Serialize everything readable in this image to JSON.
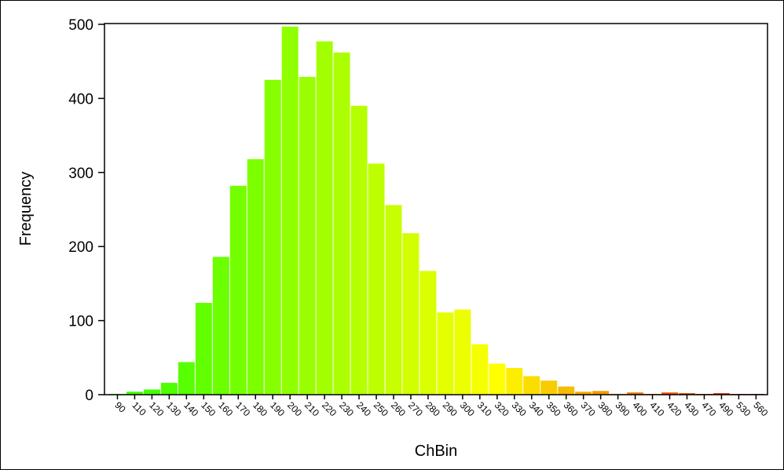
{
  "chart_data": {
    "type": "bar",
    "title": "",
    "xlabel": "ChBin",
    "ylabel": "Frequency",
    "ylim": [
      0,
      500
    ],
    "yticks": [
      0,
      100,
      200,
      300,
      400,
      500
    ],
    "grid": false,
    "categories": [
      "90",
      "110",
      "120",
      "130",
      "140",
      "150",
      "160",
      "170",
      "180",
      "190",
      "200",
      "210",
      "220",
      "230",
      "240",
      "250",
      "260",
      "270",
      "280",
      "290",
      "300",
      "310",
      "320",
      "330",
      "340",
      "350",
      "360",
      "370",
      "380",
      "390",
      "400",
      "410",
      "420",
      "430",
      "470",
      "490",
      "530",
      "560"
    ],
    "values": [
      1,
      4,
      7,
      16,
      44,
      124,
      186,
      282,
      318,
      425,
      497,
      429,
      477,
      462,
      390,
      312,
      256,
      218,
      167,
      111,
      115,
      68,
      42,
      36,
      25,
      19,
      11,
      4,
      5,
      1,
      3,
      1,
      3,
      2,
      1,
      2,
      1,
      1
    ],
    "color_gradient": [
      "#33ff00",
      "#ffff00",
      "#e00000"
    ]
  }
}
